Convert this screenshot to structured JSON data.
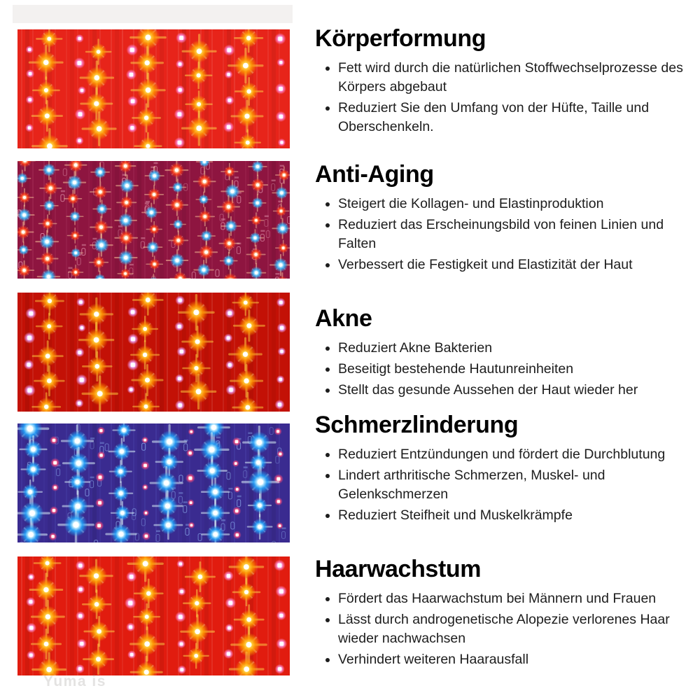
{
  "page": {
    "background": "#ffffff",
    "watermark_text": "Yuma is"
  },
  "sections": [
    {
      "id": "koerperformung",
      "title": "Körperformung",
      "bullets": [
        "Fett wird durch die natürlichen Stoffwechselprozesse des Körpers abgebaut",
        "Reduziert Sie den Umfang von der Hüfte, Taille und Oberschenkeln."
      ],
      "image": {
        "alt": "red-led-panel-with-yellow-star-leds",
        "type": "red-yellow-stars",
        "bg": "#e7241a",
        "led_core": "#ffd84a",
        "led_glow": "#ff9800",
        "dot_color": "#ff8ee4",
        "stripe_color": "#ffffff"
      }
    },
    {
      "id": "anti-aging",
      "title": "Anti-Aging",
      "bullets": [
        "Steigert die Kollagen- und Elastinproduktion",
        "Reduziert das Erscheinungsbild von feinen Linien und Falten",
        "Verbessert die Festigkeit und Elastizität der Haut"
      ],
      "image": {
        "alt": "circuit-board-with-red-and-blue-leds",
        "type": "red-blue-grid",
        "bg": "#8e1540",
        "led_core": "#ffd2a0",
        "led_glow": "#ff3812",
        "led2_core": "#d6f6ff",
        "led2_glow": "#2eb6ff",
        "dot_color": "#ffb0c8",
        "comp_color": "#ffc2d4",
        "stripe_color": "#ff9ab8"
      }
    },
    {
      "id": "akne",
      "title": "Akne",
      "bullets": [
        "Reduziert Akne Bakterien",
        "Beseitigt bestehende Hautunreinheiten",
        "Stellt das gesunde Aussehen der Haut wieder her"
      ],
      "image": {
        "alt": "dark-red-led-panel-with-orange-star-leds",
        "type": "red-yellow-stars",
        "bg": "#c31106",
        "led_core": "#ffcf3e",
        "led_glow": "#ff9200",
        "dot_color": "#eda6ff",
        "stripe_color": "#ffffff"
      }
    },
    {
      "id": "schmerzlinderung",
      "title": "Schmerzlinderung",
      "bullets": [
        "Reduziert Entzündungen und fördert die Durchblutung",
        "Lindert arthritische Schmerzen, Muskel- und Gelenkschmerzen",
        "Reduziert Steifheit und Muskelkrämpfe"
      ],
      "image": {
        "alt": "blue-circuit-board-with-cyan-leds",
        "type": "blue-stars",
        "bg": "#3a2b90",
        "led_core": "#e6ffff",
        "led_glow": "#1fa6ff",
        "dot_color": "#ff4d7e",
        "comp_color": "#9cc4ff",
        "stripe_color": "#7e96ff"
      }
    },
    {
      "id": "haarwachstum",
      "title": "Haarwachstum",
      "bullets": [
        "Fördert das Haarwachstum bei Männern und Frauen",
        "Lässt durch androgenetische Alopezie verlorenes Haar wieder nachwachsen",
        "Verhindert weiteren Haarausfall"
      ],
      "image": {
        "alt": "red-led-panel-with-yellow-star-leds",
        "type": "red-yellow-stars",
        "bg": "#e11c0f",
        "led_core": "#ffd84a",
        "led_glow": "#ffa000",
        "dot_color": "#ff9ce8",
        "stripe_color": "#ffffff"
      }
    }
  ]
}
